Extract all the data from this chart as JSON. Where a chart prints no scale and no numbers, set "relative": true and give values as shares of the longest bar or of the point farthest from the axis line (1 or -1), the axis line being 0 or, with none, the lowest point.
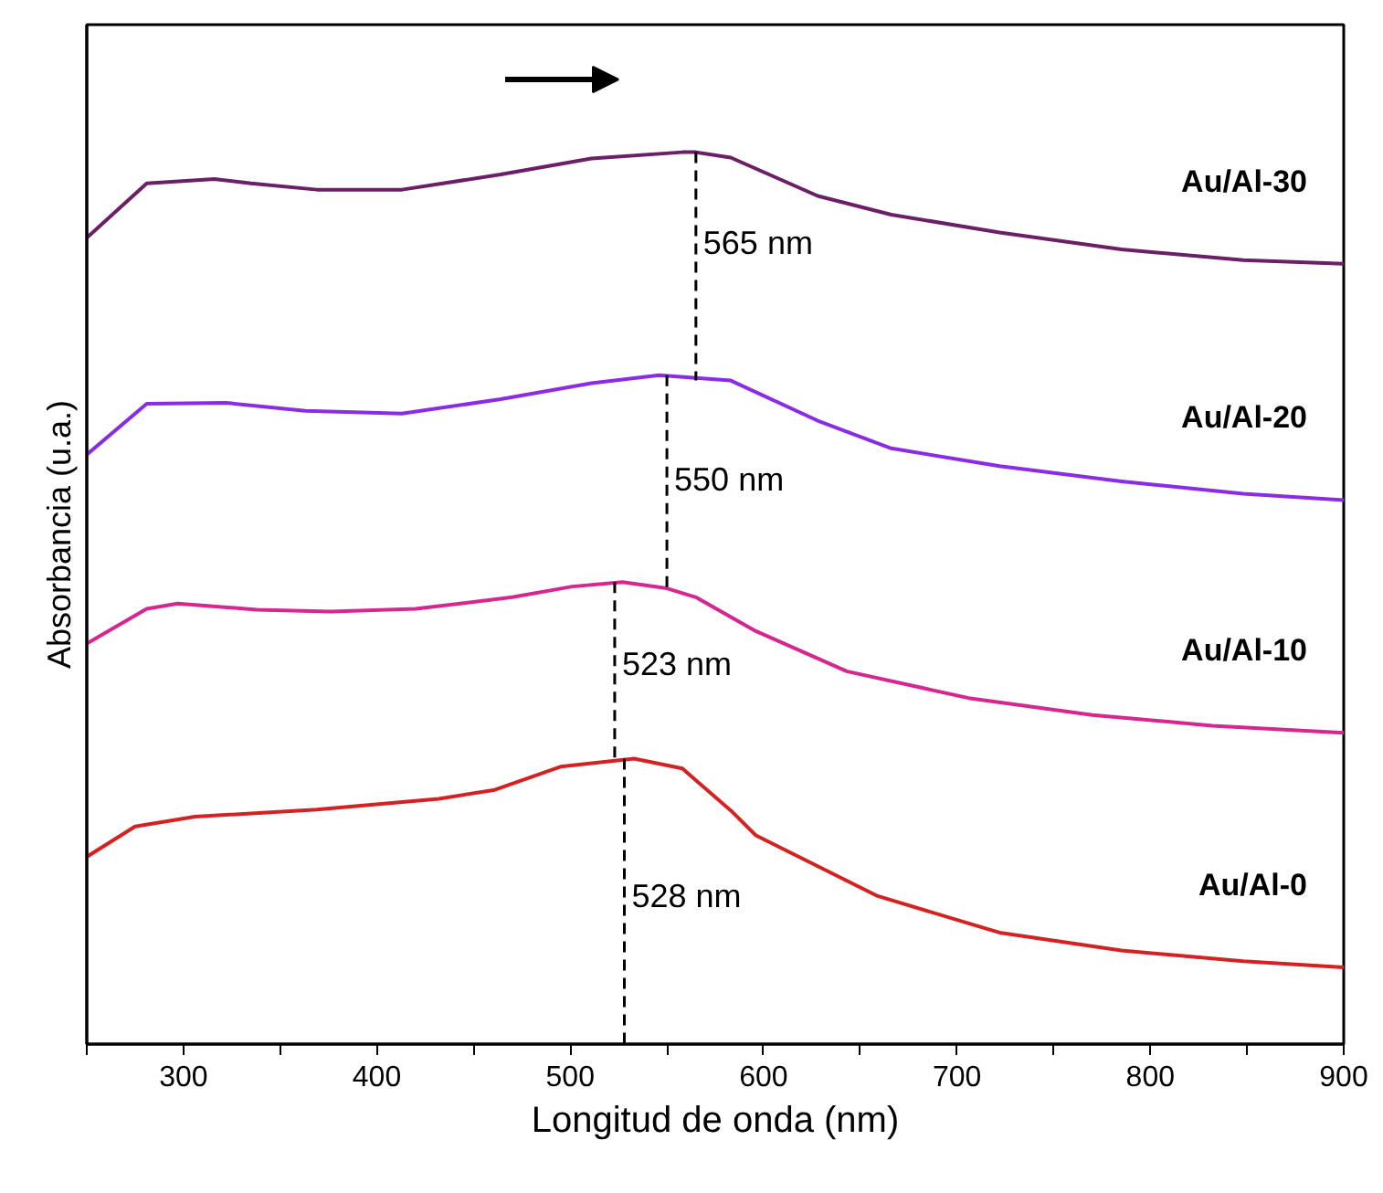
{
  "chart_data": {
    "type": "line",
    "relative": true,
    "xlabel": "Longitud de onda (nm)",
    "ylabel": "Absorbancia (u.a.)",
    "xlim": [
      250,
      900
    ],
    "xticks": [
      {
        "value": 250,
        "label": null
      },
      300,
      {
        "value": 350,
        "label": null
      },
      400,
      {
        "value": 450,
        "label": null
      },
      500,
      {
        "value": 550,
        "label": null
      },
      600,
      {
        "value": 650,
        "label": null
      },
      700,
      {
        "value": 750,
        "label": null
      },
      800,
      {
        "value": 850,
        "label": null
      },
      900
    ],
    "grid": false,
    "marker": "none",
    "line_style": "solid",
    "series": [
      {
        "name": "Au/Al-30",
        "color": "#6b1f66",
        "x": [
          250,
          281,
          316,
          335,
          369,
          413,
          464,
          511,
          558,
          565,
          583,
          628,
          666,
          722,
          785,
          848,
          900
        ],
        "values": [
          0.904,
          0.965,
          0.97,
          0.965,
          0.958,
          0.958,
          0.975,
          0.993,
          1.0,
          1.0,
          0.994,
          0.951,
          0.93,
          0.91,
          0.891,
          0.879,
          0.875
        ]
      },
      {
        "name": "Au/Al-20",
        "color": "#8a2ce6",
        "x": [
          250,
          281,
          322,
          363,
          413,
          464,
          511,
          546,
          565,
          583,
          628,
          666,
          722,
          785,
          848,
          900
        ],
        "values": [
          0.661,
          0.718,
          0.719,
          0.71,
          0.707,
          0.723,
          0.741,
          0.75,
          0.747,
          0.744,
          0.699,
          0.668,
          0.648,
          0.631,
          0.617,
          0.61
        ]
      },
      {
        "name": "Au/Al-10",
        "color": "#d6268f",
        "x": [
          250,
          281,
          297,
          338,
          376,
          420,
          470,
          501,
          527,
          550,
          565,
          596,
          643,
          706,
          770,
          832,
          900
        ],
        "values": [
          0.449,
          0.488,
          0.494,
          0.487,
          0.485,
          0.488,
          0.501,
          0.513,
          0.518,
          0.511,
          0.501,
          0.463,
          0.418,
          0.388,
          0.369,
          0.357,
          0.349
        ]
      },
      {
        "name": "Au/Al-0",
        "color": "#d42222",
        "x": [
          250,
          275,
          306,
          369,
          432,
          461,
          495,
          533,
          558,
          583,
          596,
          659,
          722,
          785,
          848,
          900
        ],
        "values": [
          0.21,
          0.244,
          0.255,
          0.263,
          0.275,
          0.285,
          0.311,
          0.32,
          0.309,
          0.262,
          0.234,
          0.166,
          0.125,
          0.105,
          0.093,
          0.086
        ]
      },
      {
        "type": "line",
        "color": "#000000",
        "line_style": "dashed",
        "x": [
          565,
          565
        ],
        "values": [
          1.0,
          0.744
        ]
      },
      {
        "type": "line",
        "color": "#000000",
        "line_style": "dashed",
        "x": [
          550,
          550
        ],
        "values": [
          0.75,
          0.511
        ]
      },
      {
        "type": "line",
        "color": "#000000",
        "line_style": "dashed",
        "x": [
          523,
          523
        ],
        "values": [
          0.518,
          0.32
        ]
      },
      {
        "type": "line",
        "color": "#000000",
        "line_style": "dashed",
        "x": [
          528,
          528
        ],
        "values": [
          0.32,
          0.0
        ]
      }
    ],
    "annotations": [
      {
        "text": "565 nm",
        "x": 565,
        "y": 0.898
      },
      {
        "text": "550 nm",
        "x": 550,
        "y": 0.633
      },
      {
        "text": "523 nm",
        "x": 523,
        "y": 0.426
      },
      {
        "text": "528 nm",
        "x": 528,
        "y": 0.166
      }
    ]
  }
}
